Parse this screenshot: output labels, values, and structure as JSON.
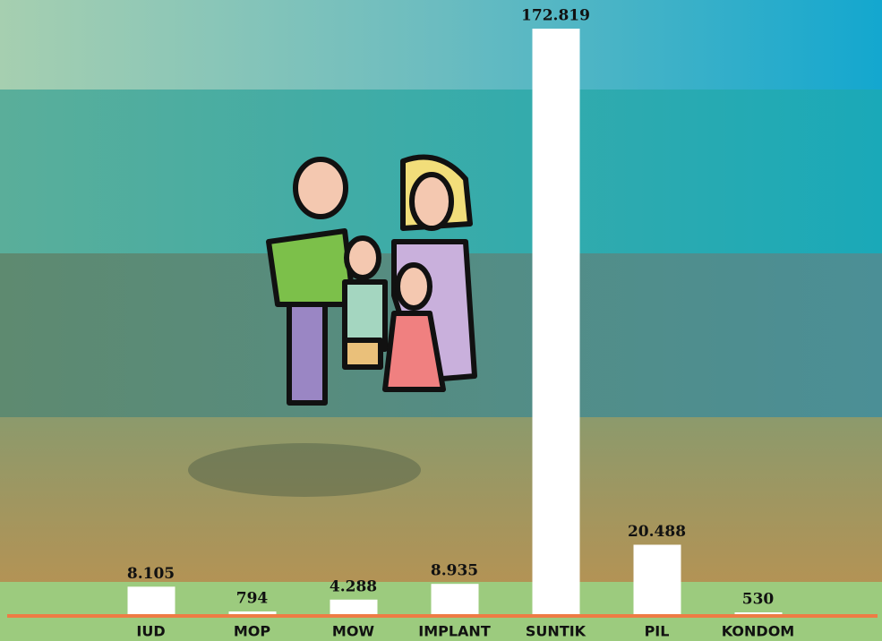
{
  "chart_data": {
    "type": "bar",
    "categories": [
      "IUD",
      "MOP",
      "MOW",
      "IMPLANT",
      "SUNTIK",
      "PIL",
      "KONDOM"
    ],
    "values": [
      8105,
      794,
      4288,
      8935,
      172819,
      20488,
      530
    ],
    "value_labels": [
      "8.105",
      "794",
      "4.288",
      "8.935",
      "172.819",
      "20.488",
      "530"
    ],
    "color": "#ffffff"
  }
}
